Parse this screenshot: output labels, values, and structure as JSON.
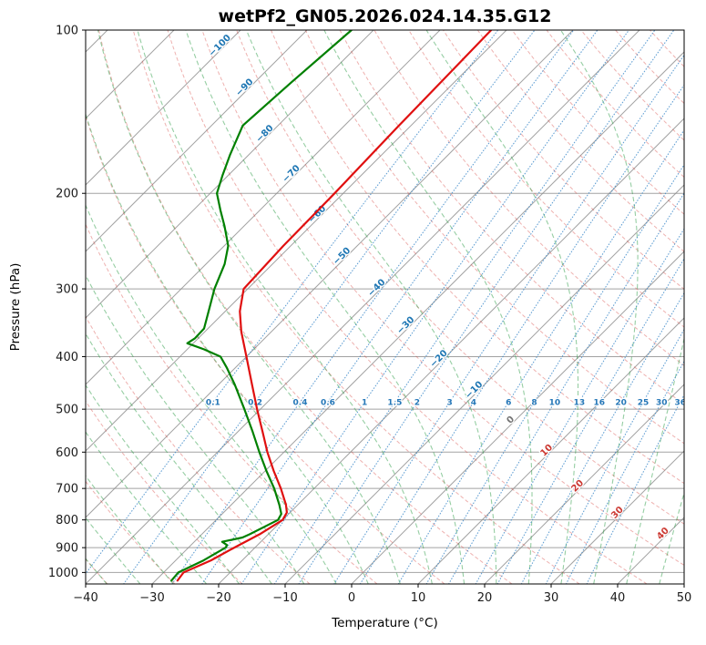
{
  "chart_data": {
    "type": "line",
    "subtype": "skewt_log_p",
    "title": "wetPf2_GN05.2026.024.14.35.G12",
    "xlabel": "Temperature (°C)",
    "ylabel": "Pressure (hPa)",
    "x_range": [
      -40,
      50
    ],
    "p_range": [
      100,
      1050
    ],
    "skew_angle_deg": 45,
    "grid_on": true,
    "x_ticks": [
      -40,
      -30,
      -20,
      -10,
      0,
      10,
      20,
      30,
      40,
      50
    ],
    "x_tick_labels": [
      "−40",
      "−30",
      "−20",
      "−10",
      "0",
      "10",
      "20",
      "30",
      "40",
      "50"
    ],
    "p_ticks": [
      100,
      200,
      300,
      400,
      500,
      600,
      700,
      800,
      900,
      1000
    ],
    "p_tick_labels": [
      "100",
      "200",
      "300",
      "400",
      "500",
      "600",
      "700",
      "800",
      "900",
      "1000"
    ],
    "isotherms": {
      "min": -160,
      "max": 60,
      "step": 10,
      "color": "#8c8c8c",
      "opacity": 0.8
    },
    "pressure_gridline_color": "#8c8c8c",
    "dry_adiabats": {
      "theta_min": -60,
      "theta_max": 200,
      "step": 10,
      "color": "#d64541",
      "opacity": 0.42,
      "dash": "4 2.6"
    },
    "moist_adiabats": {
      "thetaw_min": -40,
      "thetaw_max": 45,
      "step": 5,
      "color": "#2e9d47",
      "opacity": 0.5,
      "dash": "5 3"
    },
    "mixing_ratio": {
      "values": [
        0.1,
        0.2,
        0.4,
        0.6,
        1,
        1.5,
        2,
        3,
        4,
        6,
        8,
        10,
        13,
        16,
        20,
        25,
        30,
        36
      ],
      "label_pressure": 485,
      "color": "#3a87c8",
      "opacity": 0.8,
      "label_color": "#2577b8"
    },
    "isotherm_labels": [
      {
        "t": -100,
        "p": 108
      },
      {
        "t": -90,
        "p": 129
      },
      {
        "t": -80,
        "p": 157
      },
      {
        "t": -70,
        "p": 186
      },
      {
        "t": -60,
        "p": 221
      },
      {
        "t": -50,
        "p": 264
      },
      {
        "t": -40,
        "p": 302
      },
      {
        "t": -30,
        "p": 354
      },
      {
        "t": -20,
        "p": 408
      },
      {
        "t": -10,
        "p": 466
      },
      {
        "t": 0,
        "p": 529
      },
      {
        "t": 10,
        "p": 602
      },
      {
        "t": 20,
        "p": 700
      },
      {
        "t": 30,
        "p": 784
      },
      {
        "t": 40,
        "p": 857
      }
    ],
    "isotherm_label_colors": {
      "negative": "#1f77b4",
      "zero": "#757575",
      "positive": "#cc3a33"
    },
    "series": [
      {
        "name": "temperature",
        "color": "#e01010",
        "width": 2.2,
        "points": [
          [
            1035,
            -26.7
          ],
          [
            1000,
            -27.0
          ],
          [
            950,
            -24.7
          ],
          [
            900,
            -23.1
          ],
          [
            850,
            -21.3
          ],
          [
            800,
            -20.0
          ],
          [
            775,
            -20.5
          ],
          [
            750,
            -21.8
          ],
          [
            700,
            -25.0
          ],
          [
            650,
            -28.7
          ],
          [
            600,
            -32.5
          ],
          [
            550,
            -36.3
          ],
          [
            500,
            -40.5
          ],
          [
            450,
            -45.0
          ],
          [
            400,
            -50.0
          ],
          [
            360,
            -54.5
          ],
          [
            330,
            -57.8
          ],
          [
            300,
            -60.6
          ],
          [
            250,
            -61.1
          ],
          [
            200,
            -61.3
          ],
          [
            150,
            -61.8
          ],
          [
            100,
            -62.3
          ]
        ]
      },
      {
        "name": "dewpoint",
        "color": "#008000",
        "width": 2.2,
        "points": [
          [
            1035,
            -27.6
          ],
          [
            1000,
            -27.8
          ],
          [
            950,
            -25.8
          ],
          [
            900,
            -24.4
          ],
          [
            890,
            -24.6
          ],
          [
            878,
            -25.8
          ],
          [
            862,
            -23.4
          ],
          [
            850,
            -22.8
          ],
          [
            800,
            -20.7
          ],
          [
            780,
            -21.1
          ],
          [
            750,
            -22.8
          ],
          [
            700,
            -26.0
          ],
          [
            650,
            -29.8
          ],
          [
            600,
            -33.7
          ],
          [
            550,
            -37.8
          ],
          [
            500,
            -42.4
          ],
          [
            450,
            -47.6
          ],
          [
            420,
            -51.2
          ],
          [
            400,
            -53.9
          ],
          [
            388,
            -57.4
          ],
          [
            378,
            -60.9
          ],
          [
            370,
            -60.5
          ],
          [
            355,
            -60.6
          ],
          [
            330,
            -62.5
          ],
          [
            300,
            -65.0
          ],
          [
            270,
            -67.2
          ],
          [
            250,
            -69.4
          ],
          [
            230,
            -72.9
          ],
          [
            215,
            -75.9
          ],
          [
            200,
            -79.0
          ],
          [
            185,
            -80.9
          ],
          [
            170,
            -82.8
          ],
          [
            150,
            -85.3
          ],
          [
            125,
            -84.5
          ],
          [
            100,
            -83.3
          ]
        ]
      }
    ]
  }
}
